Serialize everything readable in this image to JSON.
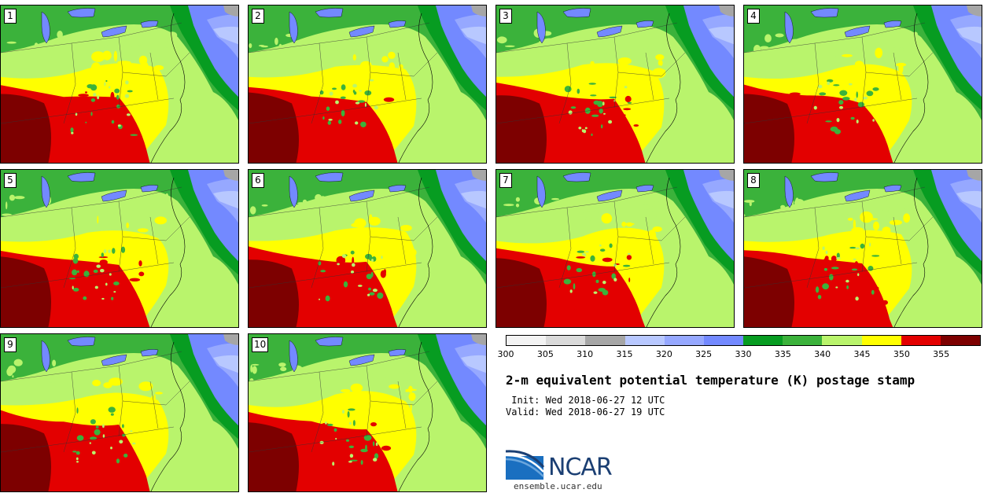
{
  "panels": [
    {
      "label": "1"
    },
    {
      "label": "2"
    },
    {
      "label": "3"
    },
    {
      "label": "4"
    },
    {
      "label": "5"
    },
    {
      "label": "6"
    },
    {
      "label": "7"
    },
    {
      "label": "8"
    },
    {
      "label": "9"
    },
    {
      "label": "10"
    }
  ],
  "legend": {
    "bins": [
      {
        "from": 300,
        "to": 305,
        "color": "#f3f3f3"
      },
      {
        "from": 305,
        "to": 310,
        "color": "#dadada"
      },
      {
        "from": 310,
        "to": 315,
        "color": "#a6a6a6"
      },
      {
        "from": 315,
        "to": 320,
        "color": "#b8c8ff"
      },
      {
        "from": 320,
        "to": 325,
        "color": "#96a8ff"
      },
      {
        "from": 325,
        "to": 330,
        "color": "#7389ff"
      },
      {
        "from": 330,
        "to": 335,
        "color": "#079c21"
      },
      {
        "from": 335,
        "to": 340,
        "color": "#3bb23b"
      },
      {
        "from": 340,
        "to": 345,
        "color": "#b9f46c"
      },
      {
        "from": 345,
        "to": 350,
        "color": "#ffff00"
      },
      {
        "from": 350,
        "to": 355,
        "color": "#e30000"
      },
      {
        "from": 355,
        "to": 360,
        "color": "#7d0000"
      }
    ],
    "tick_labels": [
      "300",
      "305",
      "310",
      "315",
      "320",
      "325",
      "330",
      "335",
      "340",
      "345",
      "350",
      "355"
    ]
  },
  "title": "2-m equivalent potential temperature (K) postage stamp",
  "init_text": " Init: Wed 2018-06-27 12 UTC",
  "valid_text": "Valid: Wed 2018-06-27 19 UTC",
  "logo": {
    "name": "NCAR",
    "url": "ensemble.ucar.edu"
  }
}
